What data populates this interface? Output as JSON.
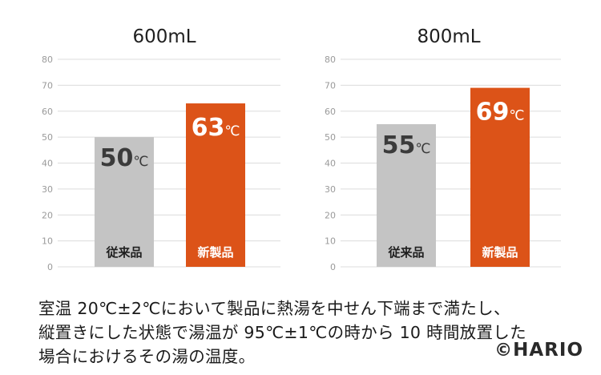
{
  "chart_data": [
    {
      "type": "bar",
      "title": "600mL",
      "categories": [
        "従来品",
        "新製品"
      ],
      "values": [
        50,
        63
      ],
      "data_labels": [
        "50℃",
        "63℃"
      ],
      "colors": [
        "#c4c4c4",
        "#dc5318"
      ],
      "ylim": [
        0,
        80
      ],
      "yticks": [
        "0",
        "10",
        "20",
        "30",
        "40",
        "50",
        "60",
        "70",
        "80"
      ],
      "grid": true
    },
    {
      "type": "bar",
      "title": "800mL",
      "categories": [
        "従来品",
        "新製品"
      ],
      "values": [
        55,
        69
      ],
      "data_labels": [
        "55℃",
        "69℃"
      ],
      "colors": [
        "#c4c4c4",
        "#dc5318"
      ],
      "ylim": [
        0,
        80
      ],
      "yticks": [
        "0",
        "10",
        "20",
        "30",
        "40",
        "50",
        "60",
        "70",
        "80"
      ],
      "grid": true
    }
  ],
  "caption": {
    "line1": "室温 20℃±2℃において製品に熱湯を中せん下端まで満たし、",
    "line2": "縦置きにした状態で湯温が 95℃±1℃の時から 10 時間放置した",
    "line3": "場合におけるその湯の温度。"
  },
  "brand": {
    "copyright": "©",
    "name": "HARIO"
  }
}
